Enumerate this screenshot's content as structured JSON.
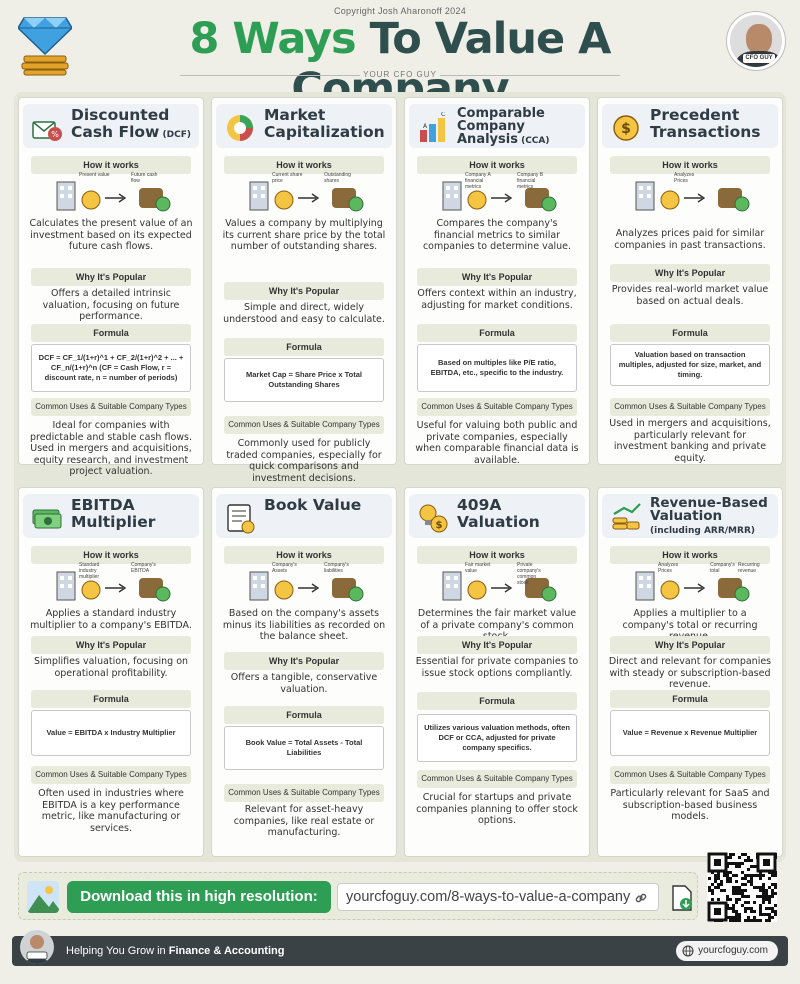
{
  "header": {
    "copyright": "Copyright Josh Aharonoff 2024",
    "title_highlight": "8 Ways",
    "title_rest": " To Value A Company",
    "subtitle": "YOUR CFO GUY",
    "badge": "CFO GUY"
  },
  "labels": {
    "how": "How it works",
    "why": "Why It's Popular",
    "formula": "Formula",
    "uses": "Common Uses & Suitable Company Types"
  },
  "cards": [
    {
      "title_main": "Discounted Cash Flow",
      "title_small": " (DCF)",
      "icon": "dcf-envelope-icon",
      "illus": [
        "Present value",
        "Future cash flow"
      ],
      "how": "Calculates the present value of an investment based on its expected future cash flows.",
      "why": "Offers a detailed intrinsic valuation, focusing on future performance.",
      "formula": "DCF = CF_1/(1+r)^1 + CF_2/(1+r)^2 + ... + CF_n/(1+r)^n (CF = Cash Flow, r = discount rate, n = number of periods)",
      "uses": "Ideal for companies with predictable and stable cash flows. Used in mergers and acquisitions, equity research, and investment project valuation."
    },
    {
      "title_main": "Market Capitalization",
      "title_small": "",
      "icon": "pie-chart-icon",
      "illus": [
        "Current share price",
        "Outstanding shares"
      ],
      "how": "Values a company by multiplying its current share price by the total number of outstanding shares.",
      "why": "Simple and direct, widely understood and easy to calculate.",
      "formula": "Market Cap = Share Price x Total Outstanding Shares",
      "uses": "Commonly used for publicly traded companies, especially for quick comparisons and investment decisions."
    },
    {
      "title_main": "Comparable Company Analysis",
      "title_small": " (CCA)",
      "icon": "bar-compare-icon",
      "illus": [
        "Company A financial metrics",
        "Company B financial metrics"
      ],
      "how": "Compares the company's financial metrics to similar companies to determine value.",
      "why": "Offers context within an industry, adjusting for market conditions.",
      "formula": "Based on multiples like P/E ratio, EBITDA, etc., specific to the industry.",
      "uses": "Useful for valuing both public and private companies, especially when comparable financial data is available."
    },
    {
      "title_main": "Precedent Transactions",
      "title_small": "",
      "icon": "coin-exchange-icon",
      "illus": [
        "Analyzes Prices"
      ],
      "how": "Analyzes prices paid for similar companies in past transactions.",
      "why": "Provides real-world market value based on actual deals.",
      "formula": "Valuation based on transaction multiples, adjusted for size, market, and timing.",
      "uses": "Used in mergers and acquisitions, particularly relevant for investment banking and private equity."
    },
    {
      "title_main": "EBITDA Multiplier",
      "title_small": "",
      "icon": "cash-stack-icon",
      "illus": [
        "Standard industry multiplier",
        "Company's EBITDA"
      ],
      "how": "Applies a standard industry multiplier to a company's EBITDA.",
      "why": "Simplifies valuation, focusing on operational profitability.",
      "formula": "Value = EBITDA x Industry Multiplier",
      "uses": "Often used in industries where EBITDA is a key performance metric, like manufacturing or services."
    },
    {
      "title_main": "Book Value",
      "title_small": "",
      "icon": "ledger-book-icon",
      "illus": [
        "Company's Assets",
        "Company's liabilities"
      ],
      "how": "Based on the company's assets minus its liabilities as recorded on the balance sheet.",
      "why": "Offers a tangible, conservative valuation.",
      "formula": "Book Value = Total Assets - Total Liabilities",
      "uses": "Relevant for asset-heavy companies, like real estate or manufacturing."
    },
    {
      "title_main": "409A Valuation",
      "title_small": "",
      "icon": "idea-coin-icon",
      "illus": [
        "Fair market value",
        "Private company's common stock"
      ],
      "how": "Determines the fair market value of a private company's common stock.",
      "why": "Essential for private companies to issue stock options compliantly.",
      "formula": "Utilizes various valuation methods, often DCF or CCA, adjusted for private company specifics.",
      "uses": "Crucial for startups and private companies planning to offer stock options."
    },
    {
      "title_main": "Revenue-Based Valuation",
      "title_small": "(including ARR/MRR)",
      "icon": "coin-stack-icon",
      "illus": [
        "Analyzes Prices",
        "Company's total",
        "Recurring revenue"
      ],
      "how": "Applies a multiplier to a company's total or recurring revenue.",
      "why": "Direct and relevant for companies with steady or subscription-based revenue.",
      "formula": "Value = Revenue x Revenue Multiplier",
      "uses": "Particularly relevant for SaaS and subscription-based business models."
    }
  ],
  "download": {
    "label": "Download this in high resolution:",
    "url": "yourcfoguy.com/8-ways-to-value-a-company"
  },
  "footer": {
    "badge": "CFO GUY",
    "text_pre": "Helping You Grow in ",
    "text_bold": "Finance & Accounting",
    "site": "yourcfoguy.com"
  }
}
